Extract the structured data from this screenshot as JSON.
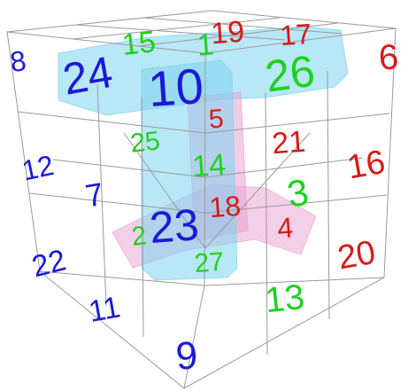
{
  "colors": {
    "blue": "#1a1ad6",
    "green": "#1fd11f",
    "red": "#d61a1a",
    "grid": "#9a9a9a",
    "cyan_fill": "#7ed3f0",
    "pink_fill": "#e8a2cf"
  },
  "numbers": [
    {
      "value": "8",
      "color": "blue"
    },
    {
      "value": "15",
      "color": "green"
    },
    {
      "value": "1",
      "color": "green"
    },
    {
      "value": "19",
      "color": "red"
    },
    {
      "value": "17",
      "color": "red"
    },
    {
      "value": "6",
      "color": "red"
    },
    {
      "value": "24",
      "color": "blue"
    },
    {
      "value": "10",
      "color": "blue"
    },
    {
      "value": "26",
      "color": "green"
    },
    {
      "value": "5",
      "color": "red"
    },
    {
      "value": "25",
      "color": "green"
    },
    {
      "value": "21",
      "color": "red"
    },
    {
      "value": "16",
      "color": "red"
    },
    {
      "value": "12",
      "color": "blue"
    },
    {
      "value": "14",
      "color": "green"
    },
    {
      "value": "7",
      "color": "blue"
    },
    {
      "value": "18",
      "color": "red"
    },
    {
      "value": "3",
      "color": "green"
    },
    {
      "value": "2",
      "color": "green"
    },
    {
      "value": "23",
      "color": "blue"
    },
    {
      "value": "4",
      "color": "red"
    },
    {
      "value": "22",
      "color": "blue"
    },
    {
      "value": "27",
      "color": "green"
    },
    {
      "value": "20",
      "color": "red"
    },
    {
      "value": "11",
      "color": "blue"
    },
    {
      "value": "13",
      "color": "green"
    },
    {
      "value": "9",
      "color": "blue"
    }
  ]
}
